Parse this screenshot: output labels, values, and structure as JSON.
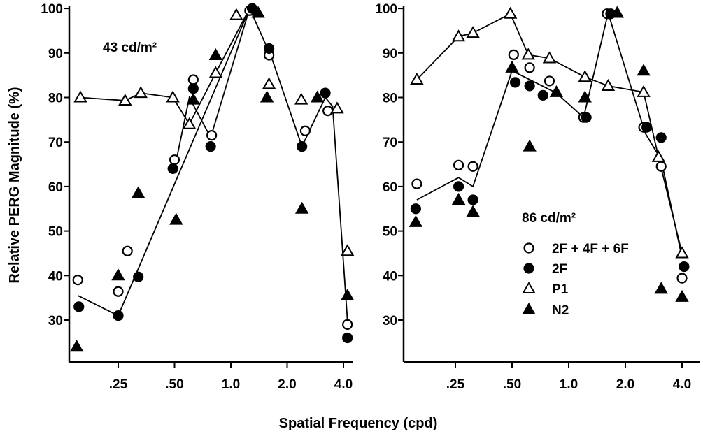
{
  "chart_data": {
    "type": "scatter",
    "ylabel": "Relative PERG Magnitude (%)",
    "xlabel": "Spatial Frequency (cpd)",
    "x_scale": "log2",
    "x_ticks": [
      ".25",
      ".50",
      "1.0",
      "2.0",
      "4.0"
    ],
    "x_tick_values": [
      0.25,
      0.5,
      1.0,
      2.0,
      4.0
    ],
    "y_ticks": [
      "100",
      "90",
      "80",
      "70",
      "60",
      "50",
      "40",
      "30"
    ],
    "ylim": [
      20,
      100
    ],
    "grid": false,
    "legend": {
      "placement": "right panel, lower-middle",
      "entries": [
        {
          "label": "2F + 4F + 6F",
          "marker": "open-circle"
        },
        {
          "label": "2F",
          "marker": "filled-circle"
        },
        {
          "label": "P1",
          "marker": "open-triangle"
        },
        {
          "label": "N2",
          "marker": "filled-triangle"
        }
      ]
    },
    "panels": [
      {
        "annotation": "43 cd/m²",
        "series": [
          {
            "name": "2F + 4F + 6F",
            "marker": "open-circle",
            "points": [
              [
                0.152,
                39
              ],
              [
                0.25,
                36.4
              ],
              [
                0.28,
                45.5
              ],
              [
                0.5,
                66
              ],
              [
                0.63,
                84
              ],
              [
                0.79,
                71.5
              ],
              [
                1.26,
                99.5
              ],
              [
                1.6,
                89.5
              ],
              [
                2.5,
                72.5
              ],
              [
                3.3,
                77
              ],
              [
                4.2,
                29
              ]
            ]
          },
          {
            "name": "2F",
            "marker": "filled-circle",
            "points": [
              [
                0.154,
                33
              ],
              [
                0.25,
                31
              ],
              [
                0.32,
                39.7
              ],
              [
                0.49,
                64
              ],
              [
                0.63,
                82
              ],
              [
                0.78,
                69
              ],
              [
                1.3,
                100
              ],
              [
                1.6,
                91
              ],
              [
                2.4,
                69
              ],
              [
                3.2,
                81
              ],
              [
                4.2,
                26
              ]
            ]
          },
          {
            "name": "P1",
            "marker": "open-triangle",
            "points": [
              [
                0.157,
                80
              ],
              [
                0.272,
                79.3
              ],
              [
                0.33,
                81
              ],
              [
                0.49,
                80
              ],
              [
                0.6,
                74
              ],
              [
                0.83,
                85.5
              ],
              [
                1.07,
                98.5
              ],
              [
                1.6,
                83
              ],
              [
                2.38,
                79.5
              ],
              [
                3.7,
                77.5
              ],
              [
                4.2,
                45.5
              ]
            ]
          },
          {
            "name": "N2",
            "marker": "filled-triangle",
            "points": [
              [
                0.15,
                24
              ],
              [
                0.25,
                40
              ],
              [
                0.32,
                58.5
              ],
              [
                0.51,
                52.5
              ],
              [
                0.63,
                79.5
              ],
              [
                0.83,
                89.5
              ],
              [
                1.4,
                99
              ],
              [
                1.56,
                80
              ],
              [
                2.4,
                55
              ],
              [
                2.9,
                80
              ],
              [
                4.2,
                35.5
              ]
            ]
          }
        ],
        "lines": [
          [
            [
              0.157,
              80
            ],
            [
              0.272,
              79.3
            ],
            [
              0.33,
              81
            ],
            [
              0.49,
              80
            ],
            [
              0.6,
              74
            ],
            [
              0.83,
              85.5
            ],
            [
              1.26,
              100
            ]
          ],
          [
            [
              0.152,
              35.5
            ],
            [
              0.25,
              31
            ],
            [
              1.26,
              100
            ]
          ],
          [
            [
              0.5,
              64
            ],
            [
              0.6,
              80
            ],
            [
              0.78,
              71
            ],
            [
              1.26,
              100
            ],
            [
              1.65,
              89
            ],
            [
              2.4,
              69
            ],
            [
              3.2,
              80
            ],
            [
              3.5,
              78
            ],
            [
              4.2,
              30
            ]
          ]
        ]
      },
      {
        "annotation": "86 cd/m²",
        "series": [
          {
            "name": "2F + 4F + 6F",
            "marker": "open-circle",
            "points": [
              [
                0.156,
                60.6
              ],
              [
                0.26,
                64.8
              ],
              [
                0.31,
                64.5
              ],
              [
                0.51,
                89.6
              ],
              [
                0.62,
                86.7
              ],
              [
                0.79,
                83.7
              ],
              [
                1.2,
                75.5
              ],
              [
                1.6,
                98.8
              ],
              [
                2.5,
                73.3
              ],
              [
                3.1,
                64.5
              ],
              [
                4.0,
                39.4
              ]
            ]
          },
          {
            "name": "2F",
            "marker": "filled-circle",
            "points": [
              [
                0.154,
                55
              ],
              [
                0.26,
                60
              ],
              [
                0.31,
                57
              ],
              [
                0.52,
                83.4
              ],
              [
                0.62,
                82.6
              ],
              [
                0.73,
                80.5
              ],
              [
                1.24,
                75.5
              ],
              [
                1.67,
                98.8
              ],
              [
                2.6,
                73.3
              ],
              [
                3.1,
                71
              ],
              [
                4.1,
                42
              ]
            ]
          },
          {
            "name": "P1",
            "marker": "open-triangle",
            "points": [
              [
                0.156,
                84
              ],
              [
                0.26,
                93.7
              ],
              [
                0.31,
                94.5
              ],
              [
                0.49,
                98.8
              ],
              [
                0.61,
                89.6
              ],
              [
                0.79,
                88.8
              ],
              [
                1.22,
                84.6
              ],
              [
                1.62,
                82.6
              ],
              [
                2.5,
                81.2
              ],
              [
                3.0,
                66.6
              ],
              [
                4.0,
                45
              ]
            ]
          },
          {
            "name": "N2",
            "marker": "filled-triangle",
            "points": [
              [
                0.154,
                52
              ],
              [
                0.26,
                57
              ],
              [
                0.31,
                54.3
              ],
              [
                0.5,
                86.7
              ],
              [
                0.62,
                69
              ],
              [
                0.86,
                81.2
              ],
              [
                1.22,
                80
              ],
              [
                1.81,
                99
              ],
              [
                2.5,
                86
              ],
              [
                3.1,
                37
              ],
              [
                4.0,
                35.2
              ]
            ]
          }
        ],
        "lines": [
          [
            [
              0.156,
              84
            ],
            [
              0.26,
              93.7
            ],
            [
              0.31,
              94.5
            ],
            [
              0.49,
              98.8
            ],
            [
              0.61,
              89.6
            ],
            [
              0.79,
              88.8
            ],
            [
              1.22,
              84.6
            ],
            [
              1.62,
              82.6
            ],
            [
              2.5,
              81.2
            ],
            [
              3.0,
              66.6
            ],
            [
              4.0,
              45
            ]
          ],
          [
            [
              0.156,
              57
            ],
            [
              0.26,
              62
            ],
            [
              0.31,
              60
            ],
            [
              0.5,
              86
            ],
            [
              0.86,
              81
            ],
            [
              1.2,
              75.5
            ],
            [
              1.62,
              99
            ],
            [
              2.55,
              72
            ],
            [
              3.1,
              66
            ],
            [
              4.0,
              44
            ]
          ]
        ]
      }
    ]
  }
}
